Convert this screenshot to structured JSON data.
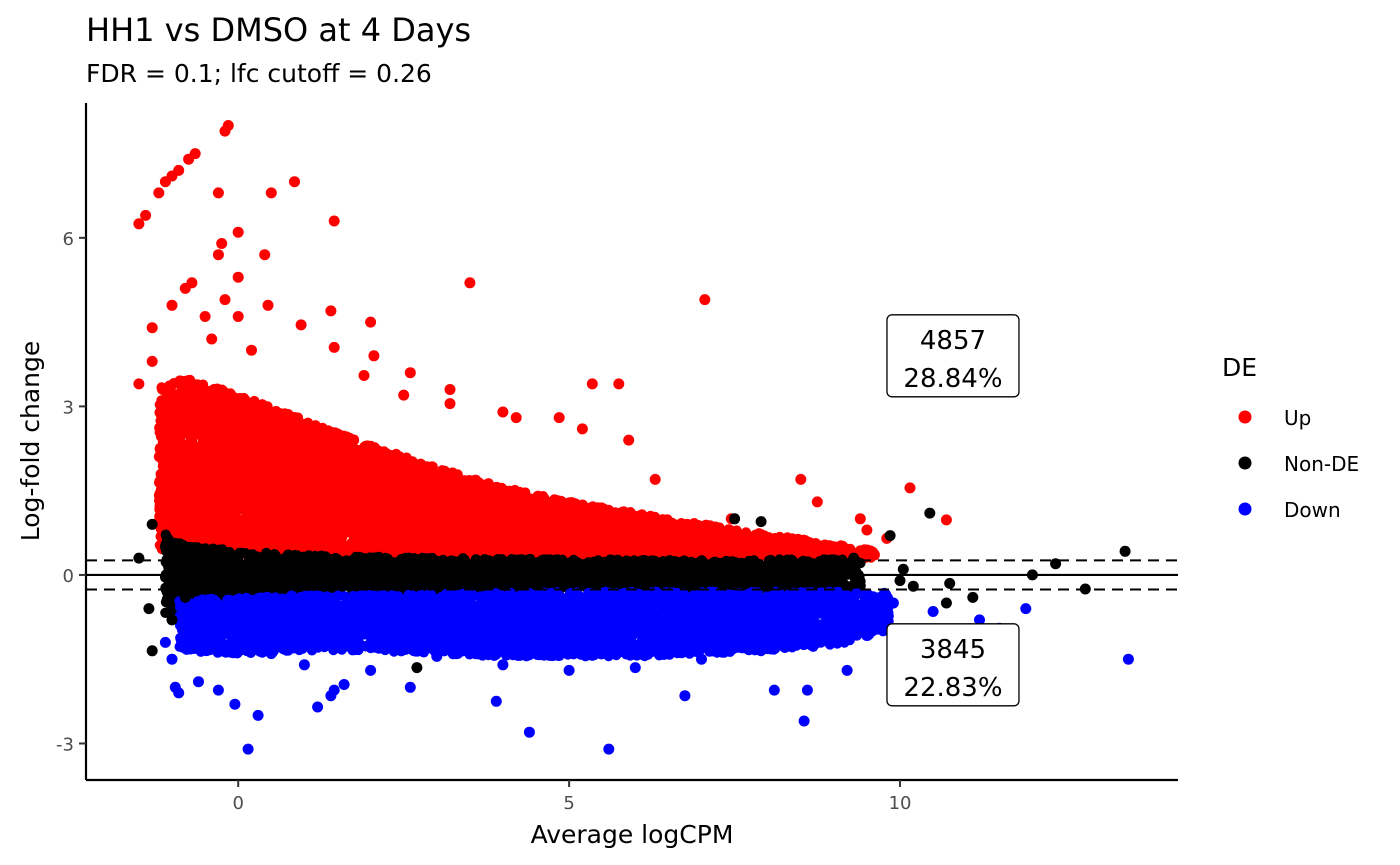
{
  "chart_data": {
    "type": "scatter",
    "title": "HH1 vs DMSO at 4 Days",
    "subtitle": "FDR = 0.1; lfc cutoff = 0.26",
    "xlabel": "Average logCPM",
    "ylabel": "Log-fold change",
    "xlim": [
      -2.3,
      14.2
    ],
    "ylim": [
      -3.65,
      8.4
    ],
    "x_ticks": [
      0,
      5,
      10
    ],
    "y_ticks": [
      -3,
      0,
      3,
      6
    ],
    "grid": false,
    "hline": 0,
    "lfc_cutoff": 0.26,
    "legend": {
      "title": "DE",
      "position": "right",
      "entries": [
        {
          "label": "Up",
          "color": "#ff0000"
        },
        {
          "label": "Non-DE",
          "color": "#000000"
        },
        {
          "label": "Down",
          "color": "#0000ff"
        }
      ]
    },
    "annotations": [
      {
        "count": "4857",
        "percent": "28.84%",
        "x": 10.8,
        "y": 3.9
      },
      {
        "count": "3845",
        "percent": "22.83%",
        "x": 10.8,
        "y": -1.6
      }
    ],
    "series": [
      {
        "name": "Up",
        "color": "#ff0000",
        "points": [
          [
            -1.5,
            6.25
          ],
          [
            -1.4,
            6.4
          ],
          [
            -1.2,
            6.8
          ],
          [
            -1.1,
            7.0
          ],
          [
            -1.0,
            7.1
          ],
          [
            -0.9,
            7.2
          ],
          [
            -0.75,
            7.4
          ],
          [
            -0.65,
            7.5
          ],
          [
            -0.2,
            7.9
          ],
          [
            -0.15,
            8.0
          ],
          [
            -0.3,
            6.8
          ],
          [
            0.0,
            6.1
          ],
          [
            -0.25,
            5.9
          ],
          [
            0.5,
            6.8
          ],
          [
            0.85,
            7.0
          ],
          [
            1.45,
            6.3
          ],
          [
            0.4,
            5.7
          ],
          [
            3.5,
            5.2
          ],
          [
            7.05,
            4.9
          ],
          [
            -0.3,
            5.7
          ],
          [
            -0.7,
            5.2
          ],
          [
            0.0,
            5.3
          ],
          [
            -0.2,
            4.9
          ],
          [
            0.45,
            4.8
          ],
          [
            -1.3,
            4.4
          ],
          [
            -1.0,
            4.8
          ],
          [
            -0.8,
            5.1
          ],
          [
            -0.5,
            4.6
          ],
          [
            -0.4,
            4.2
          ],
          [
            0.0,
            4.6
          ],
          [
            1.4,
            4.7
          ],
          [
            2.0,
            4.5
          ],
          [
            0.95,
            4.45
          ],
          [
            1.45,
            4.05
          ],
          [
            2.05,
            3.9
          ],
          [
            1.9,
            3.55
          ],
          [
            0.2,
            4.0
          ],
          [
            -1.5,
            3.4
          ],
          [
            -1.3,
            3.8
          ],
          [
            -1.1,
            3.0
          ],
          [
            2.5,
            3.2
          ],
          [
            3.2,
            3.05
          ],
          [
            2.6,
            3.6
          ],
          [
            3.2,
            3.3
          ],
          [
            4.0,
            2.9
          ],
          [
            4.2,
            2.8
          ],
          [
            4.85,
            2.8
          ],
          [
            5.35,
            3.4
          ],
          [
            5.75,
            3.4
          ],
          [
            5.2,
            2.6
          ],
          [
            5.9,
            2.4
          ],
          [
            6.3,
            1.7
          ],
          [
            7.45,
            1.0
          ],
          [
            8.5,
            1.7
          ],
          [
            8.75,
            1.3
          ],
          [
            9.4,
            1.0
          ],
          [
            10.15,
            1.55
          ],
          [
            10.7,
            0.98
          ],
          [
            9.5,
            0.8
          ],
          [
            9.8,
            0.65
          ],
          [
            9.0,
            0.5
          ],
          [
            8.2,
            0.55
          ],
          [
            7.5,
            0.6
          ],
          [
            6.8,
            0.75
          ],
          [
            6.0,
            0.9
          ],
          [
            5.0,
            1.1
          ],
          [
            4.0,
            1.3
          ],
          [
            3.0,
            1.6
          ],
          [
            2.0,
            2.0
          ],
          [
            1.0,
            2.4
          ],
          [
            0.0,
            2.8
          ],
          [
            -0.5,
            3.0
          ]
        ]
      },
      {
        "name": "Non-DE",
        "color": "#000000",
        "points": [
          [
            -1.3,
            -1.35
          ],
          [
            -1.35,
            -0.6
          ],
          [
            -1.3,
            0.9
          ],
          [
            -1.1,
            0.5
          ],
          [
            -1.0,
            -0.8
          ],
          [
            -1.5,
            0.3
          ],
          [
            -0.8,
            -0.4
          ],
          [
            7.5,
            1.0
          ],
          [
            7.9,
            0.95
          ],
          [
            9.85,
            0.7
          ],
          [
            10.45,
            1.1
          ],
          [
            10.05,
            0.1
          ],
          [
            10.2,
            -0.2
          ],
          [
            10.75,
            -0.15
          ],
          [
            11.1,
            -0.4
          ],
          [
            12.0,
            0.0
          ],
          [
            12.35,
            0.2
          ],
          [
            12.8,
            -0.25
          ],
          [
            13.4,
            0.42
          ],
          [
            10.7,
            -0.5
          ],
          [
            10.0,
            -0.1
          ],
          [
            9.3,
            0.3
          ],
          [
            8.7,
            0.2
          ],
          [
            8.0,
            -0.2
          ],
          [
            2.7,
            -1.65
          ]
        ]
      },
      {
        "name": "Down",
        "color": "#0000ff",
        "points": [
          [
            -1.1,
            -1.2
          ],
          [
            -1.0,
            -1.5
          ],
          [
            -0.95,
            -2.0
          ],
          [
            -0.9,
            -2.1
          ],
          [
            -0.6,
            -1.9
          ],
          [
            -0.3,
            -2.05
          ],
          [
            0.15,
            -3.1
          ],
          [
            -0.05,
            -2.3
          ],
          [
            0.3,
            -2.5
          ],
          [
            1.2,
            -2.35
          ],
          [
            1.45,
            -2.05
          ],
          [
            1.4,
            -2.15
          ],
          [
            1.6,
            -1.95
          ],
          [
            2.6,
            -2.0
          ],
          [
            3.9,
            -2.25
          ],
          [
            4.4,
            -2.8
          ],
          [
            5.6,
            -3.1
          ],
          [
            6.75,
            -2.15
          ],
          [
            8.55,
            -2.6
          ],
          [
            8.6,
            -2.05
          ],
          [
            8.1,
            -2.05
          ],
          [
            9.2,
            -1.7
          ],
          [
            13.45,
            -1.5
          ],
          [
            11.9,
            -0.6
          ],
          [
            11.2,
            -0.8
          ],
          [
            11.5,
            -0.95
          ],
          [
            10.5,
            -0.65
          ],
          [
            10.2,
            -1.1
          ],
          [
            9.9,
            -0.5
          ],
          [
            4.0,
            -1.6
          ],
          [
            5.0,
            -1.7
          ],
          [
            6.0,
            -1.65
          ],
          [
            7.0,
            -1.5
          ],
          [
            2.0,
            -1.7
          ],
          [
            1.0,
            -1.6
          ],
          [
            0.5,
            -1.4
          ],
          [
            3.0,
            -1.45
          ],
          [
            5.2,
            -1.2
          ],
          [
            6.5,
            -1.3
          ],
          [
            8.3,
            -1.2
          ]
        ]
      }
    ],
    "bands": [
      {
        "name": "Up",
        "color": "#ff0000",
        "anchors": [
          [
            -1.2,
            0.45,
            3.35
          ],
          [
            -0.8,
            0.4,
            3.5
          ],
          [
            0.0,
            0.38,
            3.2
          ],
          [
            1.0,
            0.36,
            2.75
          ],
          [
            2.0,
            0.35,
            2.3
          ],
          [
            3.0,
            0.34,
            1.9
          ],
          [
            4.0,
            0.33,
            1.55
          ],
          [
            5.0,
            0.32,
            1.3
          ],
          [
            6.0,
            0.31,
            1.1
          ],
          [
            7.0,
            0.3,
            0.9
          ],
          [
            8.0,
            0.3,
            0.72
          ],
          [
            9.0,
            0.3,
            0.55
          ],
          [
            9.6,
            0.3,
            0.45
          ]
        ],
        "density": 0.62
      },
      {
        "name": "Non-DE",
        "color": "#000000",
        "anchors": [
          [
            -1.1,
            -0.72,
            0.72
          ],
          [
            -0.8,
            -0.55,
            0.52
          ],
          [
            0.0,
            -0.42,
            0.42
          ],
          [
            1.0,
            -0.35,
            0.35
          ],
          [
            3.0,
            -0.3,
            0.3
          ],
          [
            6.0,
            -0.27,
            0.27
          ],
          [
            8.0,
            -0.25,
            0.28
          ],
          [
            9.4,
            -0.25,
            0.28
          ]
        ],
        "density": 0.55
      },
      {
        "name": "Down",
        "color": "#0000ff",
        "anchors": [
          [
            -0.9,
            -1.35,
            -0.45
          ],
          [
            0.0,
            -1.4,
            -0.4
          ],
          [
            1.0,
            -1.35,
            -0.36
          ],
          [
            2.0,
            -1.35,
            -0.35
          ],
          [
            3.0,
            -1.4,
            -0.33
          ],
          [
            4.0,
            -1.45,
            -0.32
          ],
          [
            5.0,
            -1.45,
            -0.31
          ],
          [
            6.0,
            -1.45,
            -0.3
          ],
          [
            7.0,
            -1.4,
            -0.3
          ],
          [
            8.0,
            -1.35,
            -0.3
          ],
          [
            9.0,
            -1.25,
            -0.3
          ],
          [
            9.8,
            -1.0,
            -0.32
          ]
        ],
        "density": 0.55
      }
    ]
  }
}
